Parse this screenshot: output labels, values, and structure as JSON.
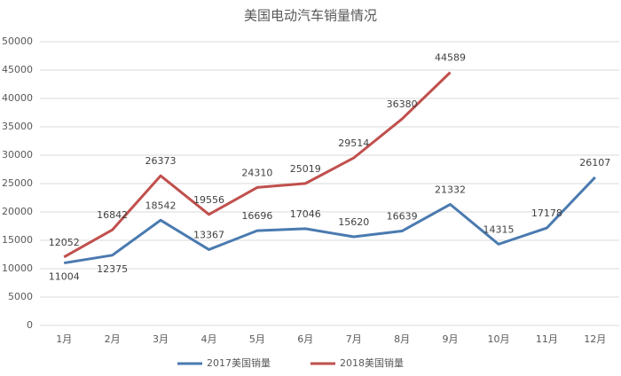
{
  "chart_data": {
    "type": "line",
    "title": "美国电动汽车销量情况",
    "categories": [
      "1月",
      "2月",
      "3月",
      "4月",
      "5月",
      "6月",
      "7月",
      "8月",
      "9月",
      "10月",
      "11月",
      "12月"
    ],
    "series": [
      {
        "name": "2017美国销量",
        "color": "#4a7ab0",
        "values": [
          11004,
          12375,
          18542,
          13367,
          16696,
          17046,
          15620,
          16639,
          21332,
          14315,
          17178,
          26107
        ]
      },
      {
        "name": "2018美国销量",
        "color": "#c0504d",
        "values": [
          12052,
          16842,
          26373,
          19556,
          24310,
          25019,
          29514,
          36380,
          44589,
          null,
          null,
          null
        ]
      }
    ],
    "ylim": [
      0,
      50000
    ],
    "yticks": [
      0,
      5000,
      10000,
      15000,
      20000,
      25000,
      30000,
      35000,
      40000,
      45000,
      50000
    ],
    "grid": true,
    "legend": "bottom"
  }
}
